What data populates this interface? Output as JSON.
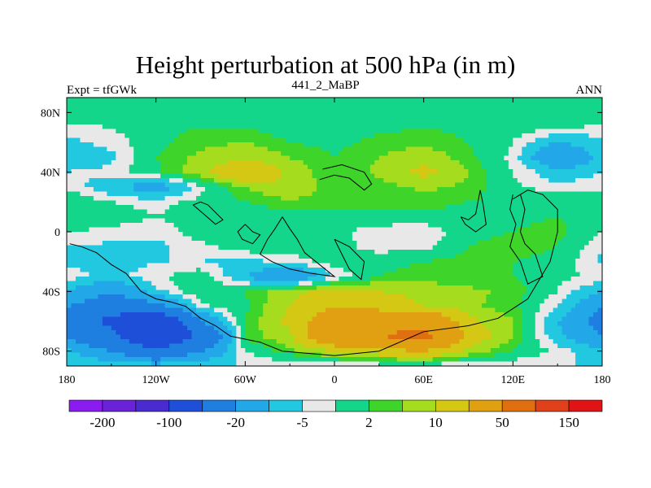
{
  "chart_data": {
    "type": "heatmap",
    "title": "Height perturbation at 500 hPa (in m)",
    "subtitle_left": "Expt = tfGWk",
    "subtitle_center": "441_2_MaBP",
    "subtitle_right": "ANN",
    "x_ticks": [
      "180",
      "120W",
      "60W",
      "0",
      "60E",
      "120E",
      "180"
    ],
    "x_tick_values": [
      -180,
      -120,
      -60,
      0,
      60,
      120,
      180
    ],
    "y_ticks": [
      "80N",
      "40N",
      "0",
      "40S",
      "80S"
    ],
    "y_tick_values": [
      80,
      40,
      0,
      -40,
      -80
    ],
    "xlim": [
      -180,
      180
    ],
    "ylim": [
      -90,
      90
    ],
    "colorbar": {
      "colors": [
        "#8a1cf0",
        "#6a22d8",
        "#4a2bd0",
        "#1e4fd8",
        "#1f7fe0",
        "#22a7e8",
        "#22c8e0",
        "#e8e8e8",
        "#14d68a",
        "#3fd42a",
        "#a6dc1e",
        "#d4c814",
        "#e0a012",
        "#e0700f",
        "#e0401a",
        "#e01414"
      ],
      "tick_labels": [
        "-200",
        "-100",
        "-20",
        "-5",
        "2",
        "10",
        "50",
        "150"
      ],
      "tick_after_box": [
        1,
        3,
        5,
        7,
        9,
        11,
        13,
        15
      ]
    },
    "bands": [
      {
        "lat": 90,
        "values": [
          0,
          0,
          0,
          0,
          0,
          0,
          0,
          0,
          0,
          0,
          0,
          0,
          0
        ]
      },
      {
        "lat": 80,
        "values": [
          1,
          1,
          0,
          0,
          0,
          0,
          0,
          0,
          0,
          0,
          0,
          0,
          1
        ]
      },
      {
        "lat": 70,
        "values": [
          -3,
          -2,
          1,
          2,
          2,
          -1,
          0,
          1,
          2,
          1,
          0,
          -1,
          -3
        ]
      },
      {
        "lat": 60,
        "values": [
          -6,
          -4,
          1,
          4,
          5,
          2,
          1,
          3,
          4,
          2,
          -2,
          -10,
          -6
        ]
      },
      {
        "lat": 50,
        "values": [
          -8,
          -6,
          2,
          6,
          8,
          5,
          2,
          5,
          8,
          3,
          -3,
          -20,
          -8
        ]
      },
      {
        "lat": 40,
        "values": [
          -5,
          -4,
          1,
          8,
          20,
          8,
          2,
          6,
          12,
          5,
          -2,
          -8,
          -5
        ]
      },
      {
        "lat": 30,
        "values": [
          -3,
          -8,
          -15,
          -3,
          5,
          10,
          2,
          3,
          6,
          4,
          -1,
          -4,
          -3
        ]
      },
      {
        "lat": 20,
        "values": [
          2,
          -2,
          -3,
          -1,
          2,
          4,
          3,
          2,
          3,
          2,
          1,
          2,
          2
        ]
      },
      {
        "lat": 10,
        "values": [
          1,
          0,
          -2,
          0,
          0,
          0,
          1,
          2,
          1,
          1,
          1,
          2,
          1
        ]
      },
      {
        "lat": 0,
        "values": [
          -2,
          -3,
          -4,
          0,
          0,
          0,
          0,
          -5,
          -5,
          1,
          2,
          3,
          -2
        ]
      },
      {
        "lat": -10,
        "values": [
          -5,
          -6,
          -6,
          -3,
          0,
          0,
          0,
          -4,
          -3,
          2,
          3,
          2,
          -5
        ]
      },
      {
        "lat": -20,
        "values": [
          -6,
          -8,
          -5,
          -5,
          -6,
          -4,
          0,
          1,
          2,
          3,
          2,
          1,
          -6
        ]
      },
      {
        "lat": -30,
        "values": [
          -3,
          -6,
          -3,
          1,
          -10,
          -20,
          -5,
          2,
          3,
          3,
          2,
          -1,
          -3
        ]
      },
      {
        "lat": -40,
        "values": [
          -10,
          -20,
          -6,
          1,
          2,
          8,
          12,
          10,
          8,
          6,
          4,
          -2,
          -10
        ]
      },
      {
        "lat": -50,
        "values": [
          -20,
          -30,
          -25,
          -3,
          1,
          10,
          20,
          15,
          10,
          6,
          3,
          -5,
          -20
        ]
      },
      {
        "lat": -60,
        "values": [
          -25,
          -60,
          -90,
          -20,
          2,
          12,
          30,
          35,
          40,
          12,
          5,
          -10,
          -25
        ]
      },
      {
        "lat": -70,
        "values": [
          -20,
          -40,
          -100,
          -40,
          3,
          8,
          40,
          50,
          60,
          15,
          5,
          -8,
          -20
        ]
      },
      {
        "lat": -80,
        "values": [
          -8,
          -20,
          -40,
          -20,
          -2,
          4,
          10,
          15,
          20,
          8,
          2,
          -3,
          -8
        ]
      },
      {
        "lat": -90,
        "values": [
          -5,
          -5,
          -5,
          -5,
          -5,
          -5,
          -5,
          -5,
          -5,
          -5,
          -5,
          -5,
          -5
        ]
      }
    ],
    "band_lons": [
      -180,
      -150,
      -120,
      -90,
      -60,
      -30,
      0,
      30,
      60,
      90,
      120,
      150,
      180
    ]
  }
}
